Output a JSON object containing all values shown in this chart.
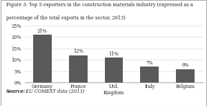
{
  "title_line1": "Figure 3: Top 5 exporters in the construction materials industry (expressed as a",
  "title_line2": "percentage of the total exports in the sector, 2013)",
  "categories": [
    "Germany",
    "France",
    "Utd.\nKingdom",
    "Italy",
    "Belgium"
  ],
  "values": [
    21,
    12,
    11,
    7,
    6
  ],
  "bar_color": "#5a5a5a",
  "ylim": [
    0,
    25
  ],
  "yticks": [
    0,
    5,
    10,
    15,
    20,
    25
  ],
  "yticklabels": [
    "0%",
    "5%",
    "10%",
    "15%",
    "20%",
    "25%"
  ],
  "bar_labels": [
    "21%",
    "12%",
    "11%",
    "7%",
    "6%"
  ],
  "source_bold": "Source:",
  "source_rest": " EU COMEXT data (2013)",
  "background_color": "#ffffff",
  "border_color": "#aaaaaa",
  "grid_color": "#dddddd",
  "text_color": "#222222"
}
